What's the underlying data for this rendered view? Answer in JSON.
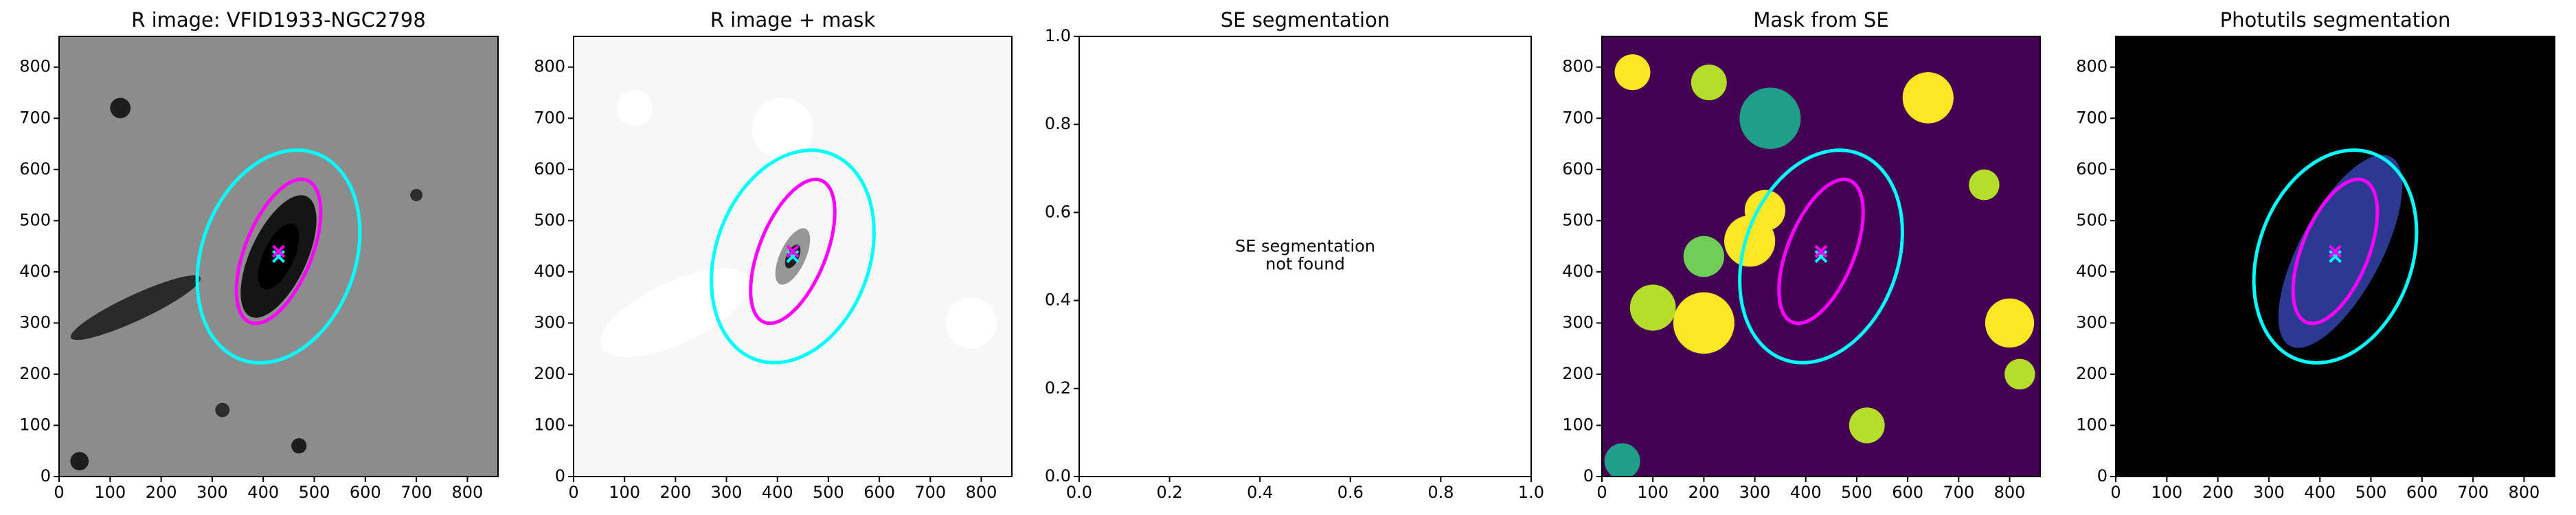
{
  "chart_data": [
    {
      "type": "image",
      "title": "R image: VFID1933-NGC2798",
      "background": "#8c8c8c",
      "xlim": [
        0,
        860
      ],
      "ylim": [
        0,
        860
      ],
      "xticks": [
        0,
        100,
        200,
        300,
        400,
        500,
        600,
        700,
        800
      ],
      "yticks": [
        0,
        100,
        200,
        300,
        400,
        500,
        600,
        700,
        800
      ],
      "ellipses": [
        {
          "x": 430,
          "y": 430,
          "a": 215,
          "b": 150,
          "angle": 70,
          "color": "#00ffff"
        },
        {
          "x": 430,
          "y": 440,
          "a": 150,
          "b": 65,
          "angle": 68,
          "color": "#ff00ff"
        }
      ]
    },
    {
      "type": "image",
      "title": "R image + mask",
      "background": "#f7f7f7",
      "xlim": [
        0,
        860
      ],
      "ylim": [
        0,
        860
      ],
      "xticks": [
        0,
        100,
        200,
        300,
        400,
        500,
        600,
        700,
        800
      ],
      "yticks": [
        0,
        100,
        200,
        300,
        400,
        500,
        600,
        700,
        800
      ],
      "ellipses": [
        {
          "x": 430,
          "y": 430,
          "a": 215,
          "b": 150,
          "angle": 70,
          "color": "#00ffff"
        },
        {
          "x": 430,
          "y": 440,
          "a": 150,
          "b": 65,
          "angle": 68,
          "color": "#ff00ff"
        }
      ]
    },
    {
      "type": "empty",
      "title": "SE segmentation",
      "background": "#ffffff",
      "note": [
        "SE segmentation",
        "not found"
      ],
      "xlim": [
        0,
        1
      ],
      "ylim": [
        0,
        1
      ],
      "xticks": [
        {
          "value": 0,
          "label": "0.0"
        },
        {
          "value": 0.2,
          "label": "0.2"
        },
        {
          "value": 0.4,
          "label": "0.4"
        },
        {
          "value": 0.6,
          "label": "0.6"
        },
        {
          "value": 0.8,
          "label": "0.8"
        },
        {
          "value": 1,
          "label": "1.0"
        }
      ],
      "yticks": [
        {
          "value": 0,
          "label": "0.0"
        },
        {
          "value": 0.2,
          "label": "0.2"
        },
        {
          "value": 0.4,
          "label": "0.4"
        },
        {
          "value": 0.6,
          "label": "0.6"
        },
        {
          "value": 0.8,
          "label": "0.8"
        },
        {
          "value": 1,
          "label": "1.0"
        }
      ]
    },
    {
      "type": "image",
      "title": "Mask from SE",
      "background": "#440154",
      "xlim": [
        0,
        860
      ],
      "ylim": [
        0,
        860
      ],
      "xticks": [
        0,
        100,
        200,
        300,
        400,
        500,
        600,
        700,
        800
      ],
      "yticks": [
        0,
        100,
        200,
        300,
        400,
        500,
        600,
        700,
        800
      ],
      "ellipses": [
        {
          "x": 430,
          "y": 430,
          "a": 215,
          "b": 150,
          "angle": 70,
          "color": "#00ffff"
        },
        {
          "x": 430,
          "y": 440,
          "a": 150,
          "b": 65,
          "angle": 68,
          "color": "#ff00ff"
        }
      ]
    },
    {
      "type": "image",
      "title": "Photutils segmentation",
      "background": "#000000",
      "xlim": [
        0,
        860
      ],
      "ylim": [
        0,
        860
      ],
      "xticks": [
        0,
        100,
        200,
        300,
        400,
        500,
        600,
        700,
        800
      ],
      "yticks": [
        0,
        100,
        200,
        300,
        400,
        500,
        600,
        700,
        800
      ],
      "ellipses": [
        {
          "x": 430,
          "y": 430,
          "a": 215,
          "b": 150,
          "angle": 70,
          "color": "#00ffff"
        },
        {
          "x": 430,
          "y": 440,
          "a": 150,
          "b": 65,
          "angle": 68,
          "color": "#ff00ff"
        }
      ]
    }
  ]
}
